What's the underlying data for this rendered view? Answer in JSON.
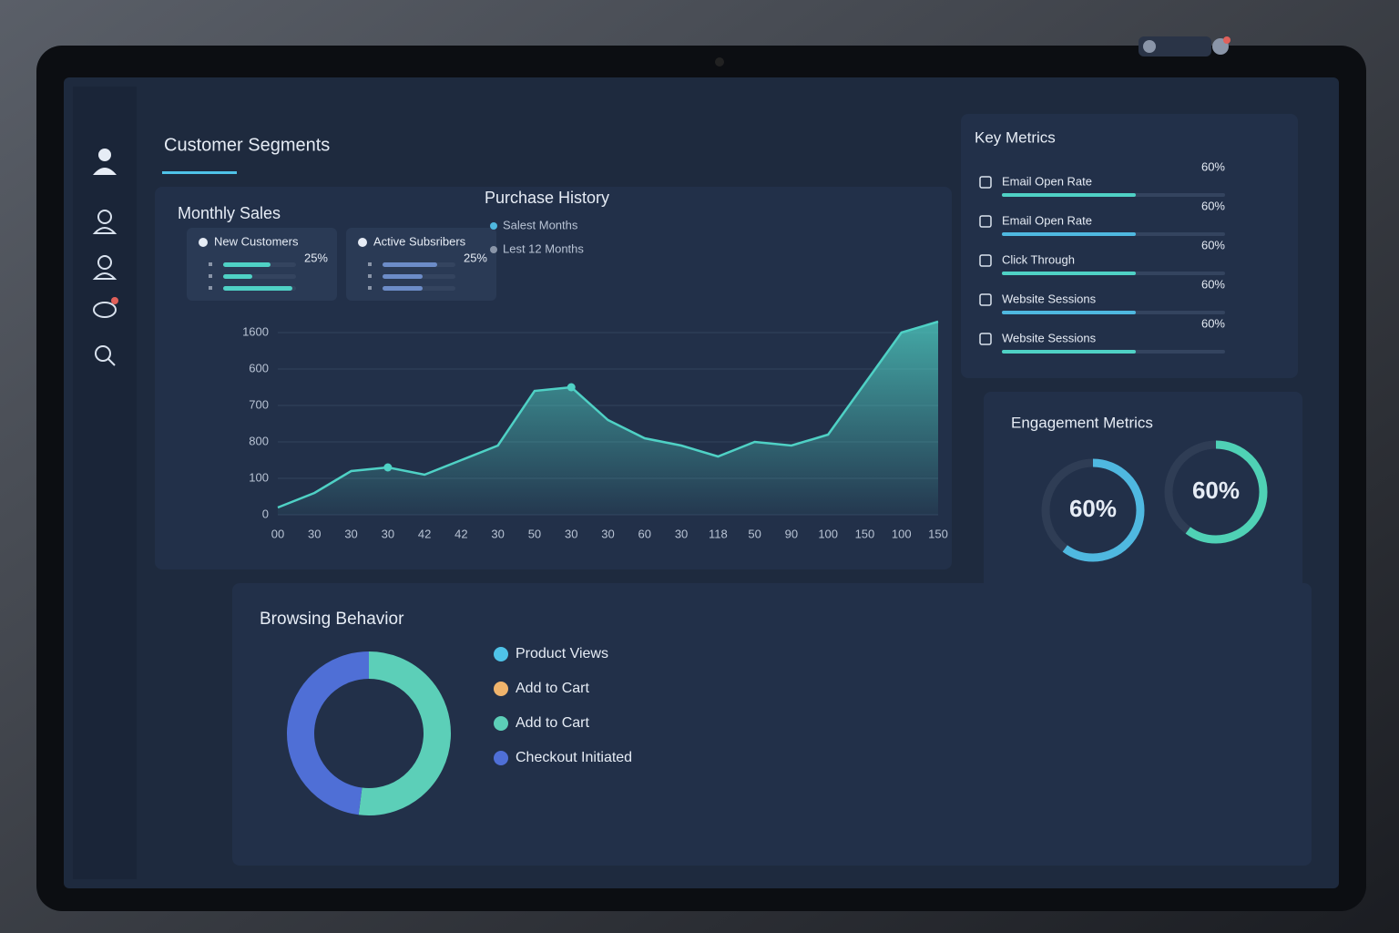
{
  "header": {
    "title": "Customer Segments"
  },
  "monthly_sales": {
    "title": "Monthly Sales",
    "cards": [
      {
        "label": "New Customers",
        "value_label": "25%",
        "bars": [
          65,
          40,
          95
        ]
      },
      {
        "label": "Active Subsribers",
        "value_label": "25%",
        "bars": [
          75,
          55,
          55
        ]
      }
    ]
  },
  "chart_data": {
    "type": "area",
    "title": "Purchase History",
    "legend": [
      {
        "name": "Salest Months",
        "color": "#4fb8e0"
      },
      {
        "name": "Lest 12 Months",
        "color": "#8a95a8"
      }
    ],
    "categories": [
      "00",
      "30",
      "30",
      "30",
      "42",
      "42",
      "30",
      "50",
      "30",
      "30",
      "60",
      "30",
      "118",
      "50",
      "90",
      "100",
      "150",
      "100",
      "150"
    ],
    "series": [
      {
        "color": "#4fd1c5",
        "values": [
          0.2,
          0.6,
          1.2,
          1.3,
          1.1,
          1.5,
          1.9,
          3.4,
          3.5,
          2.6,
          2.1,
          1.9,
          1.6,
          2.0,
          1.9,
          2.2,
          3.6,
          5.0,
          5.3
        ],
        "highlight": [
          3,
          8
        ]
      }
    ],
    "ylim": [
      0,
      5.5
    ],
    "yticks": [
      0,
      1,
      2,
      3,
      4,
      5
    ],
    "ytick_labels": [
      "0",
      "100",
      "800",
      "700",
      "600",
      "1600"
    ],
    "grid": true
  },
  "key_metrics": {
    "title": "Key Metrics",
    "rows": [
      {
        "label": "Email Open Rate",
        "value": 60,
        "value_label": "60%"
      },
      {
        "label": "Email Open Rate",
        "value": 60,
        "value_label": "60%"
      },
      {
        "label": "Click Through",
        "value": 60,
        "value_label": "60%"
      },
      {
        "label": "Website Sessions",
        "value": 60,
        "value_label": "60%"
      },
      {
        "label": "Website Sessions",
        "value": 60,
        "value_label": "60%"
      }
    ]
  },
  "engagement": {
    "title": "Engagement Metrics",
    "rings": [
      {
        "value": 60,
        "value_label": "60%",
        "color": "#4fb8e0"
      },
      {
        "value": 60,
        "value_label": "60%",
        "color": "#4fd1b5"
      }
    ]
  },
  "browsing": {
    "title": "Browsing Behavior",
    "type": "donut",
    "items": [
      {
        "name": "Product Views",
        "color": "#4fc3e8",
        "value": 0
      },
      {
        "name": "Add to Cart",
        "color": "#f0b46c",
        "value": 0
      },
      {
        "name": "Add to Cart",
        "color": "#5ccfb8",
        "value": 52
      },
      {
        "name": "Checkout Initiated",
        "color": "#4f6fd6",
        "value": 48
      }
    ]
  }
}
